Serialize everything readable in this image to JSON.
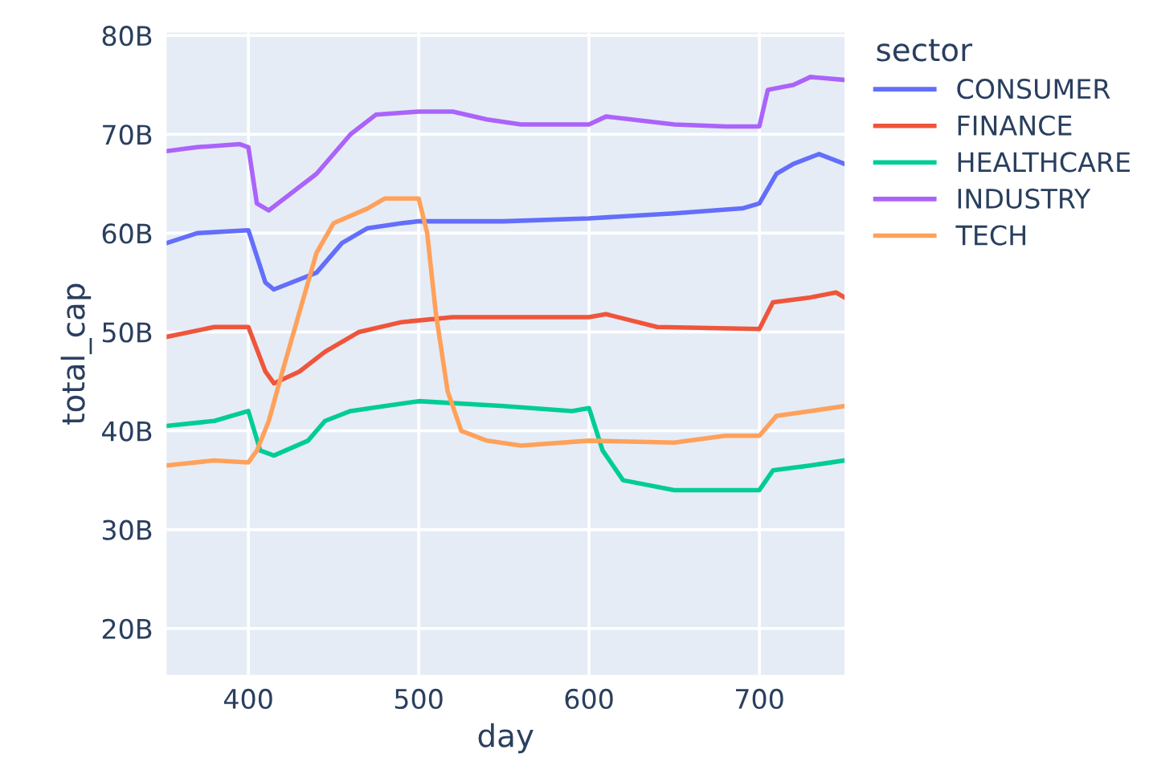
{
  "chart_data": {
    "type": "line",
    "xlabel": "day",
    "ylabel": "total_cap",
    "legend_title": "sector",
    "legend": "right",
    "grid": true,
    "xlim": [
      352,
      750
    ],
    "xticks": [
      400,
      500,
      600,
      700
    ],
    "ylim": [
      15.3,
      80.3
    ],
    "yticks": [
      {
        "value": 20,
        "label": "20B"
      },
      {
        "value": 30,
        "label": "30B"
      },
      {
        "value": 40,
        "label": "40B"
      },
      {
        "value": 50,
        "label": "50B"
      },
      {
        "value": 60,
        "label": "60B"
      },
      {
        "value": 70,
        "label": "70B"
      },
      {
        "value": 80,
        "label": "80B"
      }
    ],
    "series": [
      {
        "name": "CONSUMER",
        "color": "#636efa",
        "x": [
          352,
          370,
          400,
          410,
          415,
          440,
          455,
          470,
          490,
          500,
          550,
          600,
          650,
          690,
          700,
          710,
          720,
          735,
          750
        ],
        "values": [
          59,
          60,
          60.3,
          55,
          54.3,
          56,
          59,
          60.5,
          61,
          61.2,
          61.2,
          61.5,
          62,
          62.5,
          63,
          66,
          67,
          68,
          67
        ]
      },
      {
        "name": "FINANCE",
        "color": "#ef553b",
        "x": [
          352,
          380,
          400,
          410,
          415,
          430,
          445,
          465,
          490,
          520,
          560,
          600,
          610,
          640,
          700,
          708,
          730,
          745,
          750
        ],
        "values": [
          49.5,
          50.5,
          50.5,
          46,
          44.8,
          46,
          48,
          50,
          51,
          51.5,
          51.5,
          51.5,
          51.8,
          50.5,
          50.3,
          53,
          53.5,
          54,
          53.5
        ]
      },
      {
        "name": "HEALTHCARE",
        "color": "#00cc96",
        "x": [
          352,
          380,
          400,
          407,
          415,
          435,
          445,
          460,
          480,
          500,
          550,
          590,
          600,
          608,
          620,
          650,
          700,
          708,
          730,
          750
        ],
        "values": [
          40.5,
          41,
          42,
          38,
          37.5,
          39,
          41,
          42,
          42.5,
          43,
          42.5,
          42,
          42.3,
          38,
          35,
          34,
          34,
          36,
          36.5,
          37
        ]
      },
      {
        "name": "INDUSTRY",
        "color": "#ab63fa",
        "x": [
          352,
          370,
          395,
          400,
          405,
          412,
          440,
          460,
          475,
          500,
          520,
          540,
          560,
          600,
          610,
          650,
          680,
          700,
          705,
          720,
          730,
          750
        ],
        "values": [
          68.3,
          68.7,
          69,
          68.7,
          63,
          62.3,
          66,
          70,
          72,
          72.3,
          72.3,
          71.5,
          71,
          71,
          71.8,
          71,
          70.8,
          70.8,
          74.5,
          75,
          75.8,
          75.5
        ]
      },
      {
        "name": "TECH",
        "color": "#ffa15a",
        "x": [
          352,
          380,
          400,
          405,
          412,
          420,
          430,
          440,
          450,
          470,
          480,
          500,
          505,
          510,
          517,
          525,
          540,
          560,
          600,
          650,
          680,
          700,
          710,
          730,
          750
        ],
        "values": [
          36.5,
          37,
          36.8,
          38,
          41,
          46,
          52,
          58,
          61,
          62.5,
          63.5,
          63.5,
          60,
          52,
          44,
          40,
          39,
          38.5,
          39,
          38.8,
          39.5,
          39.5,
          41.5,
          42,
          42.5
        ]
      }
    ]
  }
}
